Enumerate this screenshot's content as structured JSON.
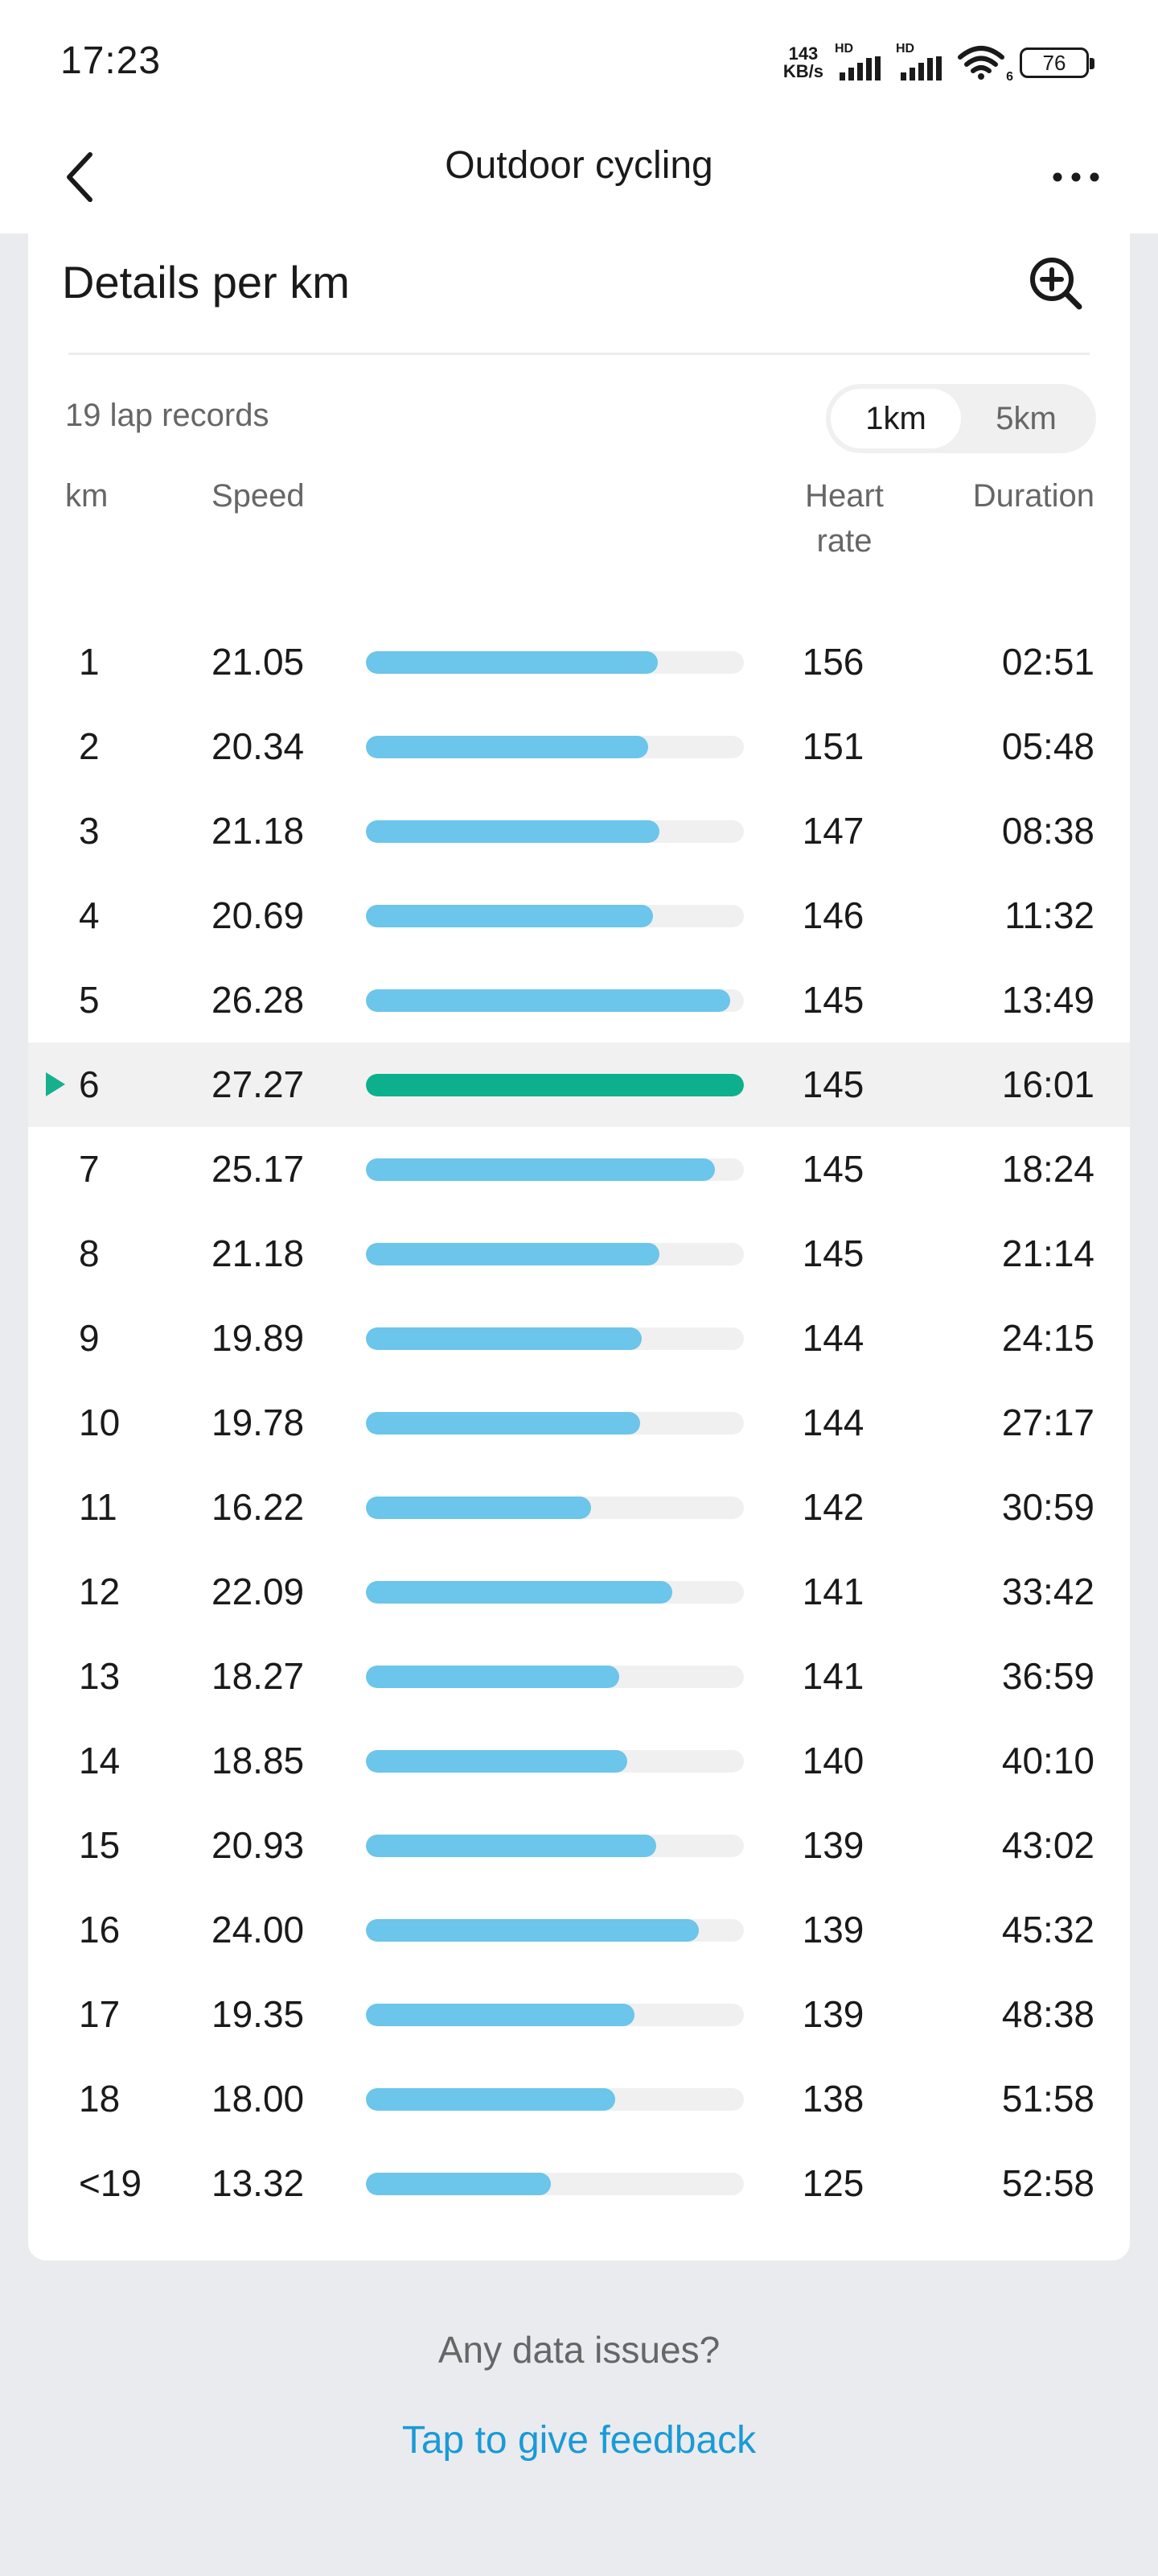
{
  "status_bar": {
    "time": "17:23",
    "net_speed_value": "143",
    "net_speed_unit": "KB/s",
    "signal1_label": "HD",
    "signal2_label": "HD",
    "wifi_badge": "6",
    "battery": "76"
  },
  "header": {
    "title": "Outdoor cycling",
    "back_icon": "chevron-left-icon",
    "more_icon": "more-horizontal-icon"
  },
  "details": {
    "title": "Details per km",
    "zoom_icon": "zoom-in-icon",
    "lap_count": "19 lap records",
    "segments": [
      {
        "label": "1km",
        "active": true
      },
      {
        "label": "5km",
        "active": false
      }
    ],
    "columns": {
      "km": "km",
      "speed": "Speed",
      "heart_rate_line1": "Heart",
      "heart_rate_line2": "rate",
      "duration": "Duration"
    },
    "max_speed": 27.27,
    "laps": [
      {
        "km": "1",
        "speed": "21.05",
        "heart_rate": "156",
        "duration": "02:51"
      },
      {
        "km": "2",
        "speed": "20.34",
        "heart_rate": "151",
        "duration": "05:48"
      },
      {
        "km": "3",
        "speed": "21.18",
        "heart_rate": "147",
        "duration": "08:38"
      },
      {
        "km": "4",
        "speed": "20.69",
        "heart_rate": "146",
        "duration": "11:32"
      },
      {
        "km": "5",
        "speed": "26.28",
        "heart_rate": "145",
        "duration": "13:49"
      },
      {
        "km": "6",
        "speed": "27.27",
        "heart_rate": "145",
        "duration": "16:01",
        "fastest": true
      },
      {
        "km": "7",
        "speed": "25.17",
        "heart_rate": "145",
        "duration": "18:24"
      },
      {
        "km": "8",
        "speed": "21.18",
        "heart_rate": "145",
        "duration": "21:14"
      },
      {
        "km": "9",
        "speed": "19.89",
        "heart_rate": "144",
        "duration": "24:15"
      },
      {
        "km": "10",
        "speed": "19.78",
        "heart_rate": "144",
        "duration": "27:17"
      },
      {
        "km": "11",
        "speed": "16.22",
        "heart_rate": "142",
        "duration": "30:59"
      },
      {
        "km": "12",
        "speed": "22.09",
        "heart_rate": "141",
        "duration": "33:42"
      },
      {
        "km": "13",
        "speed": "18.27",
        "heart_rate": "141",
        "duration": "36:59"
      },
      {
        "km": "14",
        "speed": "18.85",
        "heart_rate": "140",
        "duration": "40:10"
      },
      {
        "km": "15",
        "speed": "20.93",
        "heart_rate": "139",
        "duration": "43:02"
      },
      {
        "km": "16",
        "speed": "24.00",
        "heart_rate": "139",
        "duration": "45:32"
      },
      {
        "km": "17",
        "speed": "19.35",
        "heart_rate": "139",
        "duration": "48:38"
      },
      {
        "km": "18",
        "speed": "18.00",
        "heart_rate": "138",
        "duration": "51:58"
      },
      {
        "km": "<19",
        "speed": "13.32",
        "heart_rate": "125",
        "duration": "52:58"
      }
    ]
  },
  "footer": {
    "question": "Any data issues?",
    "link": "Tap to give feedback"
  },
  "colors": {
    "bar": "#6cc5ea",
    "bar_fastest": "#0db08c",
    "link": "#1a9ad6"
  }
}
